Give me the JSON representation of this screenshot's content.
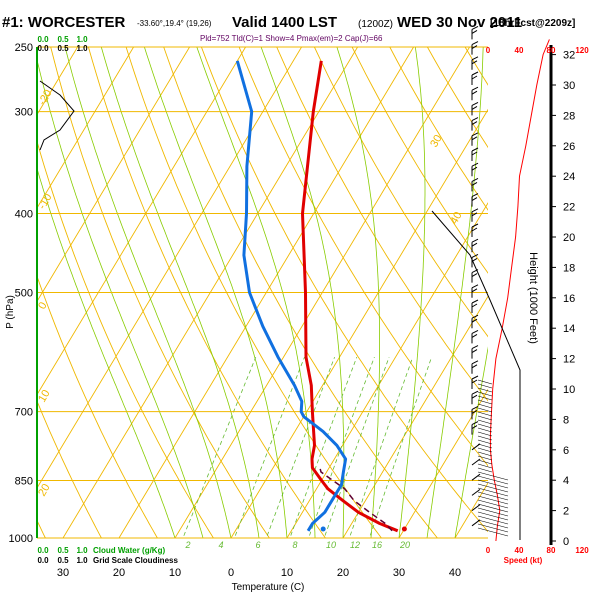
{
  "header": {
    "station": "#1: WORCESTER",
    "coords": "-33.60°,19.4° (19,26)",
    "valid": "Valid 1400 LST",
    "utc": "(1200Z)",
    "date": "WED 30 Nov 2011",
    "forecast": "[18hrFcst@2209z]",
    "indices": "Pld=752 Tld(C)=1 Show=4 Pmax(em)=2 Cap(J)=66"
  },
  "colors": {
    "temperature": "#e00000",
    "dewpoint": "#1070e0",
    "parcel": "#600030",
    "isotherm": "#f0b800",
    "dry_adiabat": "#f0b800",
    "moist_adiabat": "#88cc00",
    "mixing_ratio": "#66bb33",
    "cloud_axis": "#00a000",
    "speed_axis": "#ff0000"
  },
  "chart_data": {
    "type": "line",
    "title": "",
    "xlabel": "Temperature (C)",
    "ylabel": "P (hPa)",
    "xlim": [
      -35,
      45
    ],
    "ylim": [
      1000,
      250
    ],
    "x_ticks": [
      "30",
      "20",
      "10",
      "0",
      "10",
      "20",
      "30",
      "40"
    ],
    "y_ticks": [
      "250",
      "300",
      "400",
      "500",
      "700",
      "850",
      "1000"
    ],
    "height_axis": {
      "label": "Height (1000 Feet)",
      "ticks": [
        "0",
        "2",
        "4",
        "6",
        "8",
        "10",
        "12",
        "14",
        "16",
        "18",
        "20",
        "22",
        "24",
        "26",
        "28",
        "30",
        "32"
      ]
    },
    "speed_axis": {
      "label": "Speed (kt)",
      "ticks": [
        "0",
        "40",
        "80",
        "120"
      ]
    },
    "cloud_axis": {
      "top_labels": [
        "0.0",
        "0.5",
        "1.0"
      ],
      "bottom_cloud_labels": [
        "0.0",
        "0.5",
        "1.0"
      ],
      "bottom_cloud_title": "Cloud Water (g/Kg)",
      "bottom_grid_labels": [
        "0.0",
        "0.5",
        "1.0"
      ],
      "bottom_grid_title": "Grid Scale Cloudiness"
    },
    "dry_adiabat_labels": [
      "-20",
      "-10",
      "0",
      "10",
      "20",
      "30",
      "40"
    ],
    "mixing_ratio_labels": [
      "2",
      "4",
      "6",
      "8",
      "10",
      "12",
      "16",
      "20"
    ],
    "series": [
      {
        "id": "temperature",
        "values": [
          [
            980,
            29
          ],
          [
            960,
            25
          ],
          [
            930,
            20
          ],
          [
            900,
            16
          ],
          [
            870,
            12
          ],
          [
            850,
            10
          ],
          [
            820,
            7
          ],
          [
            800,
            6
          ],
          [
            770,
            5
          ],
          [
            700,
            1
          ],
          [
            650,
            -2
          ],
          [
            600,
            -6
          ],
          [
            500,
            -13
          ],
          [
            400,
            -22
          ],
          [
            300,
            -31
          ],
          [
            260,
            -35
          ]
        ]
      },
      {
        "id": "dewpoint",
        "values": [
          [
            980,
            13
          ],
          [
            960,
            13
          ],
          [
            930,
            14
          ],
          [
            900,
            14
          ],
          [
            860,
            14
          ],
          [
            830,
            13
          ],
          [
            800,
            12
          ],
          [
            770,
            9
          ],
          [
            740,
            5
          ],
          [
            710,
            0
          ],
          [
            700,
            -1
          ],
          [
            680,
            -2
          ],
          [
            650,
            -5
          ],
          [
            600,
            -11
          ],
          [
            550,
            -17
          ],
          [
            500,
            -23
          ],
          [
            450,
            -28
          ],
          [
            400,
            -32
          ],
          [
            350,
            -37
          ],
          [
            300,
            -42
          ],
          [
            260,
            -50
          ]
        ]
      },
      {
        "id": "parcel",
        "dashed": true,
        "values": [
          [
            980,
            28
          ],
          [
            960,
            26
          ],
          [
            930,
            22
          ],
          [
            900,
            18
          ],
          [
            870,
            15
          ],
          [
            850,
            12
          ],
          [
            830,
            9
          ],
          [
            815,
            8
          ]
        ]
      }
    ],
    "markers": [
      {
        "id": "surface-temperature",
        "pressure": 975,
        "temp": 30
      },
      {
        "id": "surface-dewpoint",
        "pressure": 975,
        "temp": 15.5
      }
    ],
    "speed_profile_kt": [
      [
        0,
        10
      ],
      [
        1,
        12
      ],
      [
        2,
        15
      ],
      [
        3,
        12
      ],
      [
        4,
        8
      ],
      [
        5,
        5
      ],
      [
        6,
        3
      ],
      [
        7,
        3
      ],
      [
        8,
        4
      ],
      [
        10,
        6
      ],
      [
        12,
        10
      ],
      [
        14,
        18
      ],
      [
        16,
        25
      ],
      [
        18,
        30
      ],
      [
        20,
        35
      ],
      [
        22,
        38
      ],
      [
        24,
        40
      ],
      [
        26,
        48
      ],
      [
        28,
        55
      ],
      [
        30,
        62
      ],
      [
        32,
        70
      ],
      [
        33,
        78
      ]
    ],
    "wind_barb_heights_kft": [
      33,
      32,
      31,
      30,
      29,
      28,
      27,
      26,
      25,
      24,
      23,
      22,
      21,
      20,
      19,
      18,
      17,
      16,
      15,
      14,
      13,
      12,
      11,
      10,
      9,
      8,
      7,
      6,
      5,
      4,
      3,
      2,
      1
    ]
  }
}
